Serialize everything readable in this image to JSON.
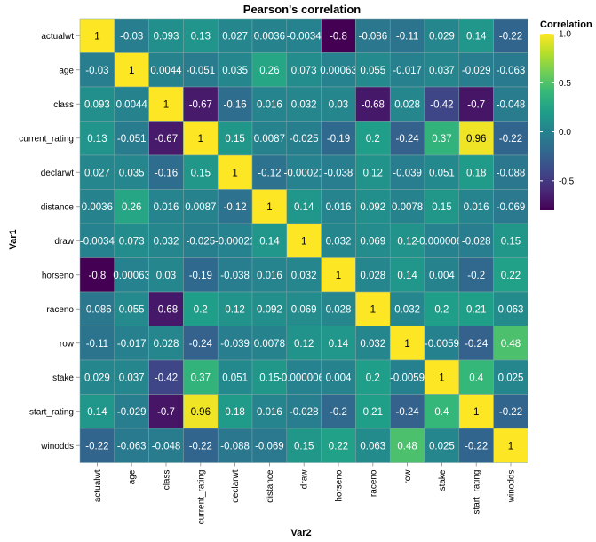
{
  "chart_data": {
    "type": "heatmap",
    "title": "Pearson's correlation",
    "xlabel": "Var2",
    "ylabel": "Var1",
    "variables": [
      "actualwt",
      "age",
      "class",
      "current_rating",
      "declarwt",
      "distance",
      "draw",
      "horseno",
      "raceno",
      "row",
      "stake",
      "start_rating",
      "winodds"
    ],
    "labels": [
      [
        "1",
        "-0.03",
        "0.093",
        "0.13",
        "0.027",
        "0.0036",
        "-0.0034",
        "-0.8",
        "-0.086",
        "-0.11",
        "0.029",
        "0.14",
        "-0.22"
      ],
      [
        "-0.03",
        "1",
        "0.0044",
        "-0.051",
        "0.035",
        "0.26",
        "0.073",
        "0.00063",
        "0.055",
        "-0.017",
        "0.037",
        "-0.029",
        "-0.063"
      ],
      [
        "0.093",
        "0.0044",
        "1",
        "-0.67",
        "-0.16",
        "0.016",
        "0.032",
        "0.03",
        "-0.68",
        "0.028",
        "-0.42",
        "-0.7",
        "-0.048"
      ],
      [
        "0.13",
        "-0.051",
        "-0.67",
        "1",
        "0.15",
        "0.0087",
        "-0.025",
        "-0.19",
        "0.2",
        "-0.24",
        "0.37",
        "0.96",
        "-0.22"
      ],
      [
        "0.027",
        "0.035",
        "-0.16",
        "0.15",
        "1",
        "-0.12",
        "-0.00021",
        "-0.038",
        "0.12",
        "-0.039",
        "0.051",
        "0.18",
        "-0.088"
      ],
      [
        "0.0036",
        "0.26",
        "0.016",
        "0.0087",
        "-0.12",
        "1",
        "0.14",
        "0.016",
        "0.092",
        "0.0078",
        "0.15",
        "0.016",
        "-0.069"
      ],
      [
        "-0.0034",
        "0.073",
        "0.032",
        "-0.025",
        "-0.00021",
        "0.14",
        "1",
        "0.032",
        "0.069",
        "0.12",
        "-0.0000068",
        "-0.028",
        "0.15"
      ],
      [
        "-0.8",
        "0.00063",
        "0.03",
        "-0.19",
        "-0.038",
        "0.016",
        "0.032",
        "1",
        "0.028",
        "0.14",
        "0.004",
        "-0.2",
        "0.22"
      ],
      [
        "-0.086",
        "0.055",
        "-0.68",
        "0.2",
        "0.12",
        "0.092",
        "0.069",
        "0.028",
        "1",
        "0.032",
        "0.2",
        "0.21",
        "0.063"
      ],
      [
        "-0.11",
        "-0.017",
        "0.028",
        "-0.24",
        "-0.039",
        "0.0078",
        "0.12",
        "0.14",
        "0.032",
        "1",
        "-0.0059",
        "-0.24",
        "0.48"
      ],
      [
        "0.029",
        "0.037",
        "-0.42",
        "0.37",
        "0.051",
        "0.15",
        "-0.0000068",
        "0.004",
        "0.2",
        "-0.0059",
        "1",
        "0.4",
        "0.025"
      ],
      [
        "0.14",
        "-0.029",
        "-0.7",
        "0.96",
        "0.18",
        "0.016",
        "-0.028",
        "-0.2",
        "0.21",
        "-0.24",
        "0.4",
        "1",
        "-0.22"
      ],
      [
        "-0.22",
        "-0.063",
        "-0.048",
        "-0.22",
        "-0.088",
        "-0.069",
        "0.15",
        "0.22",
        "0.063",
        "0.48",
        "0.025",
        "-0.22",
        "1"
      ]
    ],
    "legend": {
      "title": "Correlation",
      "placement": "top-right",
      "ticks": [
        1.0,
        0.5,
        0.0,
        -0.5
      ],
      "tick_labels": [
        "1.0",
        "0.5",
        "0.0",
        "-0.5"
      ],
      "range": [
        -0.8,
        1.0
      ]
    },
    "colormap": "viridis",
    "colors": [
      "#440154",
      "#482878",
      "#3e4989",
      "#31688e",
      "#26828e",
      "#1f9e89",
      "#35b779",
      "#6ece58",
      "#b5de2b",
      "#fde725"
    ]
  }
}
